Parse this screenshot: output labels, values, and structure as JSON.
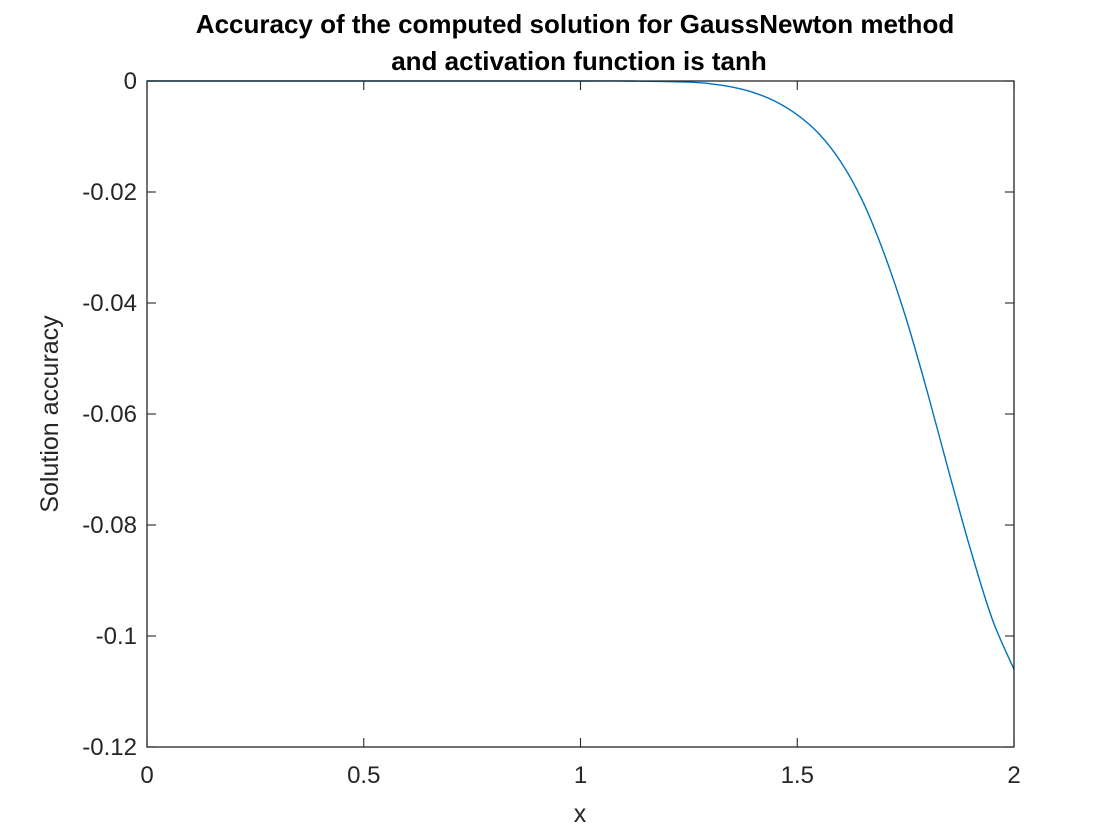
{
  "chart_data": {
    "type": "line",
    "title_lines": [
      "Accuracy of the computed solution for GaussNewton method",
      "and activation function is tanh"
    ],
    "xlabel": "x",
    "ylabel": "Solution accuracy",
    "xlim": [
      0,
      2
    ],
    "ylim": [
      -0.12,
      0
    ],
    "xticks": [
      0,
      0.5,
      1,
      1.5,
      2
    ],
    "xtick_labels": [
      "0",
      "0.5",
      "1",
      "1.5",
      "2"
    ],
    "yticks": [
      0,
      -0.02,
      -0.04,
      -0.06,
      -0.08,
      -0.1,
      -0.12
    ],
    "ytick_labels": [
      "0",
      "-0.02",
      "-0.04",
      "-0.06",
      "-0.08",
      "-0.1",
      "-0.12"
    ],
    "grid": false,
    "series": [
      {
        "color": "#0072BD",
        "x": [
          0,
          0.25,
          0.5,
          0.75,
          1.0,
          1.1,
          1.2,
          1.25,
          1.3,
          1.35,
          1.4,
          1.45,
          1.5,
          1.55,
          1.6,
          1.65,
          1.7,
          1.75,
          1.8,
          1.85,
          1.9,
          1.95,
          2.0
        ],
        "y": [
          0,
          0,
          0,
          0,
          0,
          0,
          -0.0001,
          -0.0002,
          -0.0005,
          -0.0011,
          -0.0021,
          -0.0037,
          -0.0061,
          -0.0095,
          -0.0145,
          -0.0215,
          -0.031,
          -0.0425,
          -0.056,
          -0.0705,
          -0.0845,
          -0.097,
          -0.106
        ]
      }
    ]
  }
}
